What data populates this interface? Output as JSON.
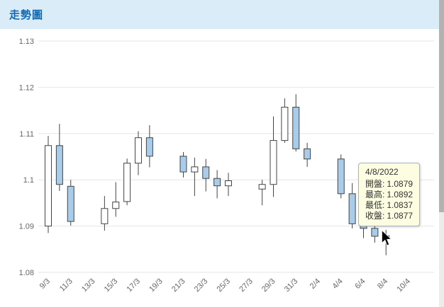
{
  "header": {
    "title": "走勢圖"
  },
  "tooltip": {
    "date": "4/8/2022",
    "rows": [
      {
        "label": "開盤:",
        "value": "1.0879"
      },
      {
        "label": "最高:",
        "value": "1.0892"
      },
      {
        "label": "最低:",
        "value": "1.0837"
      },
      {
        "label": "收盤:",
        "value": "1.0877"
      }
    ]
  },
  "colors": {
    "header_bg": "#d9ecf7",
    "title": "#1268b3",
    "tooltip_bg": "#fdfde2",
    "tooltip_border": "#a9b4bd",
    "scrollbar_track": "#ececec",
    "scrollbar_thumb": "#b2b2b2",
    "cursor": "#000000"
  },
  "chart_data": {
    "type": "candlestick",
    "title": "走勢圖",
    "xlabel": "",
    "ylabel": "",
    "grid": true,
    "ylim": [
      1.08,
      1.13
    ],
    "hovered": "8/4",
    "colors": {
      "up_fill": "#ffffff",
      "down_fill": "#a9cceb",
      "candle_line": "#444444",
      "grid": "#e6e6e6",
      "axis_text": "#666666"
    },
    "y_ticks": [
      {
        "v": 1.08,
        "label": "1.08"
      },
      {
        "v": 1.09,
        "label": "1.09"
      },
      {
        "v": 1.1,
        "label": "1.1"
      },
      {
        "v": 1.11,
        "label": "1.11"
      },
      {
        "v": 1.12,
        "label": "1.12"
      },
      {
        "v": 1.13,
        "label": "1.13"
      }
    ],
    "x_ticks": [
      {
        "label": "9/3",
        "day": 0
      },
      {
        "label": "11/3",
        "day": 2
      },
      {
        "label": "13/3",
        "day": 4
      },
      {
        "label": "15/3",
        "day": 6
      },
      {
        "label": "17/3",
        "day": 8
      },
      {
        "label": "19/3",
        "day": 10
      },
      {
        "label": "21/3",
        "day": 12
      },
      {
        "label": "23/3",
        "day": 14
      },
      {
        "label": "25/3",
        "day": 16
      },
      {
        "label": "27/3",
        "day": 18
      },
      {
        "label": "29/3",
        "day": 20
      },
      {
        "label": "31/3",
        "day": 22
      },
      {
        "label": "2/4",
        "day": 24
      },
      {
        "label": "4/4",
        "day": 26
      },
      {
        "label": "6/4",
        "day": 28
      },
      {
        "label": "8/4",
        "day": 30
      },
      {
        "label": "10/4",
        "day": 32
      }
    ],
    "candles": [
      {
        "date": "9/3",
        "day": 0,
        "o": 1.09,
        "h": 1.1095,
        "l": 1.0885,
        "c": 1.1074
      },
      {
        "date": "10/3",
        "day": 1,
        "o": 1.1074,
        "h": 1.1121,
        "l": 1.0976,
        "c": 1.099
      },
      {
        "date": "11/3",
        "day": 2,
        "o": 1.0986,
        "h": 1.1,
        "l": 1.0901,
        "c": 1.091
      },
      {
        "date": "14/3",
        "day": 5,
        "o": 1.0905,
        "h": 1.0965,
        "l": 1.089,
        "c": 1.0938
      },
      {
        "date": "15/3",
        "day": 6,
        "o": 1.0938,
        "h": 1.0995,
        "l": 1.092,
        "c": 1.0952
      },
      {
        "date": "16/3",
        "day": 7,
        "o": 1.0953,
        "h": 1.1046,
        "l": 1.0945,
        "c": 1.1036
      },
      {
        "date": "17/3",
        "day": 8,
        "o": 1.1036,
        "h": 1.1105,
        "l": 1.101,
        "c": 1.1091
      },
      {
        "date": "18/3",
        "day": 9,
        "o": 1.1091,
        "h": 1.1118,
        "l": 1.1027,
        "c": 1.1051
      },
      {
        "date": "21/3",
        "day": 12,
        "o": 1.1051,
        "h": 1.106,
        "l": 1.1005,
        "c": 1.1017
      },
      {
        "date": "22/3",
        "day": 13,
        "o": 1.1017,
        "h": 1.1048,
        "l": 1.0965,
        "c": 1.1028
      },
      {
        "date": "23/3",
        "day": 14,
        "o": 1.1028,
        "h": 1.1045,
        "l": 1.0975,
        "c": 1.1003
      },
      {
        "date": "24/3",
        "day": 15,
        "o": 1.1003,
        "h": 1.1021,
        "l": 1.096,
        "c": 1.0987
      },
      {
        "date": "25/3",
        "day": 16,
        "o": 1.0987,
        "h": 1.1015,
        "l": 1.0965,
        "c": 1.0998
      },
      {
        "date": "28/3",
        "day": 19,
        "o": 1.098,
        "h": 1.1,
        "l": 1.0945,
        "c": 1.099
      },
      {
        "date": "29/3",
        "day": 20,
        "o": 1.099,
        "h": 1.1137,
        "l": 1.0963,
        "c": 1.1085
      },
      {
        "date": "30/3",
        "day": 21,
        "o": 1.1085,
        "h": 1.1176,
        "l": 1.108,
        "c": 1.1157
      },
      {
        "date": "31/3",
        "day": 22,
        "o": 1.1157,
        "h": 1.1185,
        "l": 1.1061,
        "c": 1.1067
      },
      {
        "date": "1/4",
        "day": 23,
        "o": 1.1067,
        "h": 1.108,
        "l": 1.1028,
        "c": 1.1045
      },
      {
        "date": "4/4",
        "day": 26,
        "o": 1.1045,
        "h": 1.1055,
        "l": 1.096,
        "c": 1.097
      },
      {
        "date": "5/4",
        "day": 27,
        "o": 1.097,
        "h": 1.0993,
        "l": 1.0895,
        "c": 1.0905
      },
      {
        "date": "6/4",
        "day": 28,
        "o": 1.0905,
        "h": 1.0925,
        "l": 1.0874,
        "c": 1.0895
      },
      {
        "date": "7/4",
        "day": 29,
        "o": 1.0895,
        "h": 1.092,
        "l": 1.0864,
        "c": 1.0878
      },
      {
        "date": "8/4",
        "day": 30,
        "o": 1.0879,
        "h": 1.0892,
        "l": 1.0837,
        "c": 1.0877
      }
    ]
  }
}
